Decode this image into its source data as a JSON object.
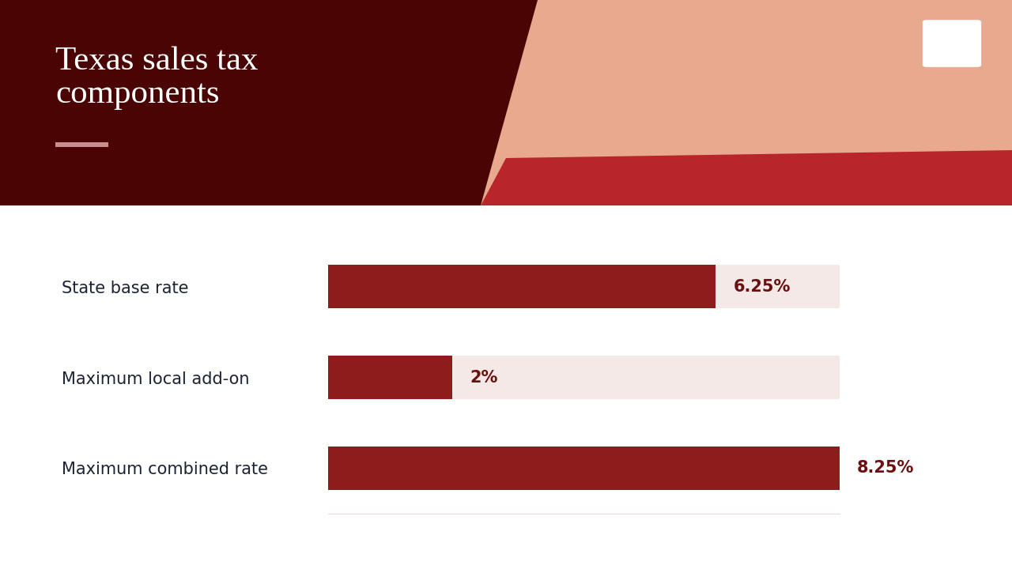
{
  "chart_data": {
    "type": "bar",
    "title": "Texas sales tax components",
    "orientation": "horizontal",
    "categories": [
      "State base rate",
      "Maximum local add-on",
      "Maximum combined rate"
    ],
    "values": [
      6.25,
      2,
      8.25
    ],
    "value_labels": [
      "6.25%",
      "2%",
      "8.25%"
    ],
    "color": "#8e1c1c",
    "xlim": [
      0,
      8.25
    ],
    "data_labels": true,
    "tick_labels": "y",
    "grid": false
  }
}
